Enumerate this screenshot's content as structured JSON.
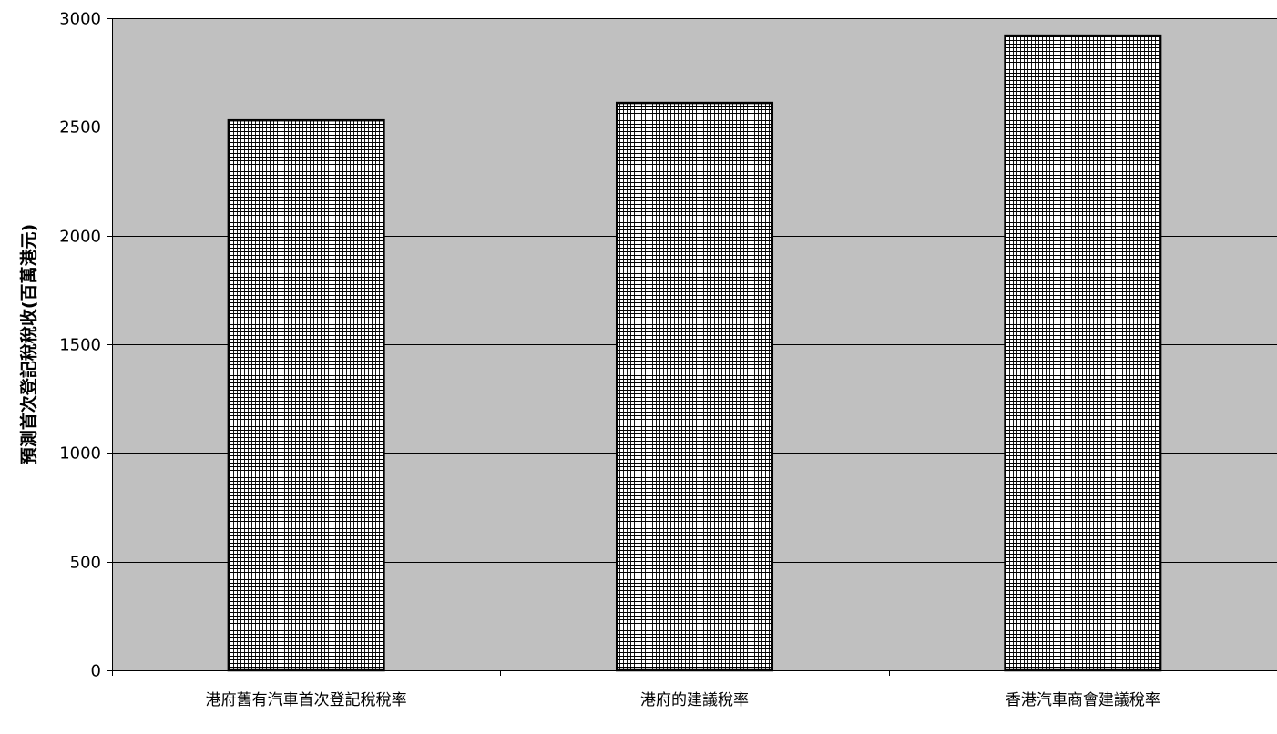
{
  "chart_data": {
    "type": "bar",
    "title": "",
    "xlabel": "",
    "ylabel": "預測首次登記稅稅收(百萬港元)",
    "categories": [
      "港府舊有汽車首次登記稅稅率",
      "港府的建議稅率",
      "香港汽車商會建議稅率"
    ],
    "values": [
      2530,
      2610,
      2920
    ],
    "ylim": [
      0,
      3000
    ],
    "yticks": [
      0,
      500,
      1000,
      1500,
      2000,
      2500,
      3000
    ],
    "grid": true,
    "legend": "none",
    "colors": {
      "plot_background": "#c0c0c0",
      "bar_fill": "#ffffff",
      "bar_pattern": "#000000",
      "gridline": "#000000"
    }
  }
}
